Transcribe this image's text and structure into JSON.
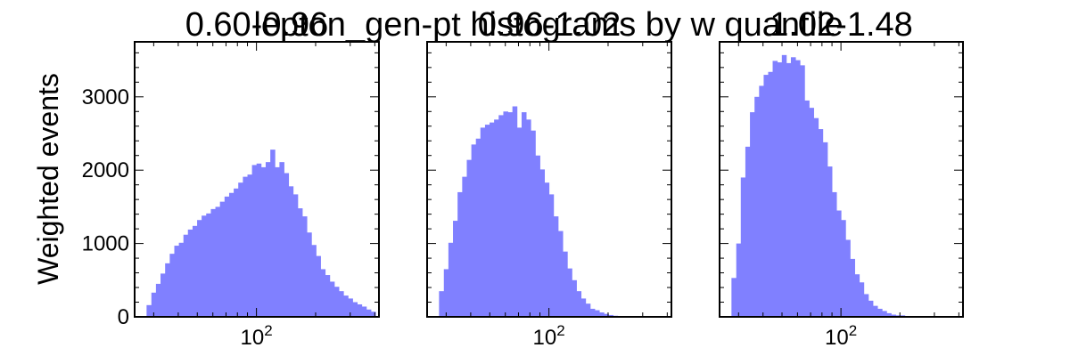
{
  "figure": {
    "suptitle": "lepton_gen-pt histograms by w quantile",
    "ylabel": "Weighted events",
    "bar_color": "#8080ff"
  },
  "chart_data": [
    {
      "type": "bar",
      "title": "0.60-0.96",
      "xscale": "log",
      "xlim": [
        24,
        420
      ],
      "ylim": [
        0,
        3750
      ],
      "ylabel": "Weighted events",
      "xtick_labels": [
        "10^2"
      ],
      "ytick_labels": [
        "0",
        "1000",
        "2000",
        "3000"
      ],
      "grid": false,
      "color": "#8080ff",
      "bin_edges": [
        27.6,
        29.2,
        30.8,
        32.5,
        34.3,
        36.2,
        38.2,
        40.3,
        42.5,
        44.8,
        47.3,
        49.9,
        52.6,
        55.5,
        58.6,
        61.8,
        65.2,
        68.8,
        72.6,
        76.6,
        80.8,
        85.3,
        90.0,
        94.9,
        100.1,
        105.6,
        111.4,
        117.6,
        124.1,
        130.9,
        138.1,
        145.7,
        153.7,
        162.2,
        171.1,
        180.5,
        190.5,
        201.0,
        212.0,
        223.7,
        236.0,
        249.0,
        262.7,
        277.2,
        292.5,
        308.6,
        325.6,
        343.5,
        362.4,
        382.4,
        403.5
      ],
      "values": [
        160,
        330,
        450,
        590,
        730,
        860,
        970,
        1010,
        1120,
        1190,
        1240,
        1320,
        1380,
        1410,
        1470,
        1500,
        1570,
        1640,
        1690,
        1750,
        1830,
        1910,
        1940,
        2070,
        2090,
        2040,
        2110,
        2280,
        2040,
        2110,
        1960,
        1780,
        1670,
        1480,
        1370,
        1150,
        980,
        830,
        650,
        570,
        480,
        410,
        350,
        290,
        250,
        200,
        170,
        140,
        100,
        70
      ]
    },
    {
      "type": "bar",
      "title": "0.96-1.02",
      "xscale": "log",
      "xlim": [
        24,
        420
      ],
      "ylim": [
        0,
        3750
      ],
      "xtick_labels": [
        "10^2"
      ],
      "grid": false,
      "color": "#8080ff",
      "bin_edges": [
        27.6,
        29.2,
        30.8,
        32.5,
        34.3,
        36.2,
        38.2,
        40.3,
        42.5,
        44.8,
        47.3,
        49.9,
        52.6,
        55.5,
        58.6,
        61.8,
        65.2,
        68.8,
        72.6,
        76.6,
        80.8,
        85.3,
        90.0,
        94.9,
        100.1,
        105.6,
        111.4,
        117.6,
        124.1,
        130.9,
        138.1,
        145.7,
        153.7,
        162.2,
        171.1,
        180.5,
        190.5,
        201.0,
        212.0,
        223.7,
        236.0,
        249.0,
        262.7,
        277.2,
        292.5,
        308.6,
        325.6,
        343.5,
        362.4,
        382.4,
        403.5
      ],
      "values": [
        350,
        650,
        1010,
        1310,
        1700,
        1910,
        2140,
        2350,
        2430,
        2580,
        2620,
        2650,
        2690,
        2750,
        2800,
        2790,
        2870,
        2580,
        2790,
        2690,
        2540,
        2200,
        2010,
        1830,
        1670,
        1370,
        1170,
        890,
        660,
        500,
        350,
        250,
        180,
        110,
        90,
        60,
        40,
        25,
        15,
        10,
        5,
        5,
        0,
        0,
        0,
        0,
        0,
        0,
        0,
        0
      ]
    },
    {
      "type": "bar",
      "title": "1.02-1.48",
      "xscale": "log",
      "xlim": [
        24,
        420
      ],
      "ylim": [
        0,
        3750
      ],
      "xtick_labels": [
        "10^2"
      ],
      "grid": false,
      "color": "#8080ff",
      "bin_edges": [
        27.6,
        29.2,
        30.8,
        32.5,
        34.3,
        36.2,
        38.2,
        40.3,
        42.5,
        44.8,
        47.3,
        49.9,
        52.6,
        55.5,
        58.6,
        61.8,
        65.2,
        68.8,
        72.6,
        76.6,
        80.8,
        85.3,
        90.0,
        94.9,
        100.1,
        105.6,
        111.4,
        117.6,
        124.1,
        130.9,
        138.1,
        145.7,
        153.7,
        162.2,
        171.1,
        180.5,
        190.5,
        201.0,
        212.0,
        223.7,
        236.0,
        249.0,
        262.7,
        277.2,
        292.5,
        308.6,
        325.6,
        343.5,
        362.4,
        382.4,
        403.5
      ],
      "values": [
        530,
        1000,
        1900,
        2320,
        2790,
        3000,
        3150,
        3300,
        3340,
        3490,
        3470,
        3570,
        3460,
        3540,
        3500,
        3430,
        2950,
        2850,
        2710,
        2560,
        2380,
        2050,
        1700,
        1450,
        1320,
        1050,
        790,
        580,
        470,
        310,
        220,
        150,
        110,
        80,
        50,
        30,
        20,
        20,
        10,
        10,
        5,
        5,
        0,
        0,
        0,
        0,
        0,
        0,
        0,
        0
      ]
    }
  ]
}
